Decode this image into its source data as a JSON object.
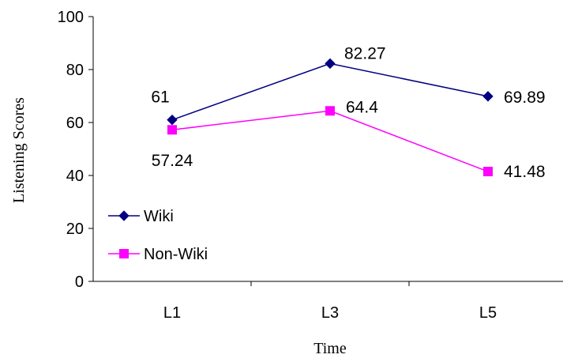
{
  "chart_data": {
    "type": "line",
    "title": "",
    "xlabel": "Time",
    "ylabel": "Listening Scores",
    "categories": [
      "L1",
      "L3",
      "L5"
    ],
    "ylim": [
      0,
      100
    ],
    "yticks": [
      0,
      20,
      40,
      60,
      80,
      100
    ],
    "grid": false,
    "legend_position": "bottom-left",
    "series": [
      {
        "name": "Wiki",
        "values": [
          61,
          82.27,
          69.89
        ],
        "labels": [
          "61",
          "82.27",
          "69.89"
        ],
        "color": "#000080",
        "marker": "diamond"
      },
      {
        "name": "Non-Wiki",
        "values": [
          57.24,
          64.4,
          41.48
        ],
        "labels": [
          "57.24",
          "64.4",
          "41.48"
        ],
        "color": "#ff00ff",
        "marker": "square"
      }
    ]
  }
}
